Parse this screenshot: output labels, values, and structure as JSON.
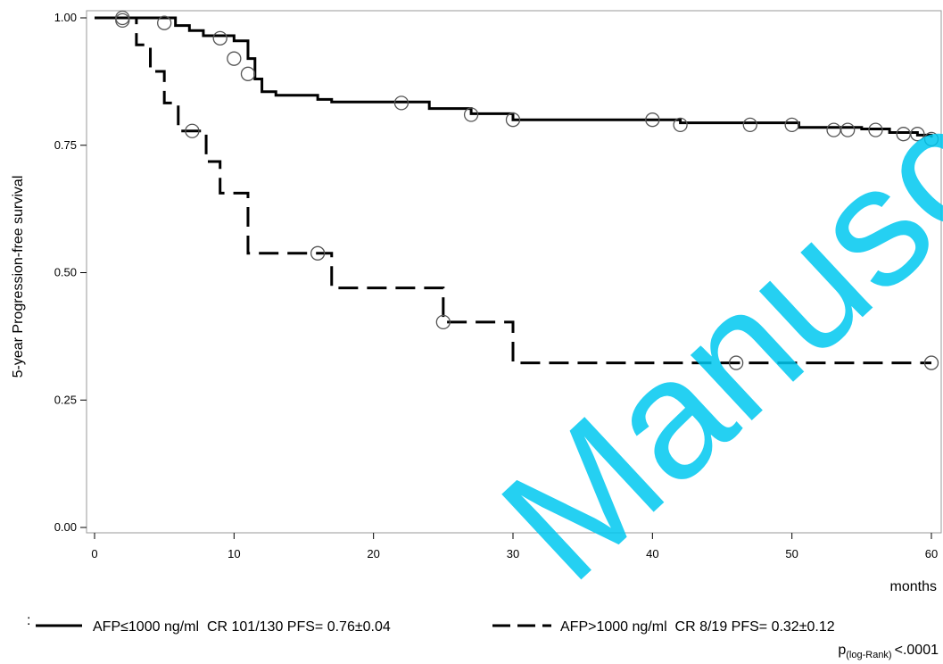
{
  "chart_data": {
    "type": "line",
    "subtype": "kaplan-meier step",
    "xlabel": "months",
    "ylabel": "5-year Progression-free survival",
    "xlim": [
      0,
      60
    ],
    "ylim": [
      0,
      1
    ],
    "xticks": [
      0,
      10,
      20,
      30,
      40,
      50,
      60
    ],
    "yticks": [
      "0.00",
      "0.25",
      "0.50",
      "0.75",
      "1.00"
    ],
    "grid": false,
    "legend_position": "bottom",
    "series": [
      {
        "name": "AFP≤1000 ng/ml  CR 101/130 PFS= 0.76±0.04",
        "line_style": "solid",
        "color": "#000000",
        "steps": [
          [
            0,
            1.0
          ],
          [
            5.8,
            0.985
          ],
          [
            6.8,
            0.975
          ],
          [
            7.8,
            0.965
          ],
          [
            10,
            0.955
          ],
          [
            11,
            0.92
          ],
          [
            11.5,
            0.88
          ],
          [
            12,
            0.855
          ],
          [
            13,
            0.848
          ],
          [
            16,
            0.84
          ],
          [
            17,
            0.835
          ],
          [
            24,
            0.822
          ],
          [
            27,
            0.812
          ],
          [
            30,
            0.8
          ],
          [
            42,
            0.794
          ],
          [
            50.5,
            0.785
          ],
          [
            55,
            0.782
          ],
          [
            57,
            0.775
          ],
          [
            59,
            0.77
          ],
          [
            60,
            0.765
          ]
        ],
        "censored": [
          [
            2,
            0.995
          ],
          [
            5,
            0.99
          ],
          [
            9,
            0.96
          ],
          [
            10,
            0.92
          ],
          [
            11,
            0.89
          ],
          [
            22,
            0.833
          ],
          [
            27,
            0.81
          ],
          [
            30,
            0.8
          ],
          [
            40,
            0.8
          ],
          [
            42,
            0.79
          ],
          [
            47,
            0.79
          ],
          [
            50,
            0.79
          ],
          [
            53,
            0.78
          ],
          [
            54,
            0.78
          ],
          [
            56,
            0.78
          ],
          [
            58,
            0.772
          ],
          [
            59,
            0.772
          ],
          [
            60,
            0.762
          ]
        ]
      },
      {
        "name": "AFP>1000 ng/ml  CR 8/19 PFS= 0.32±0.12",
        "line_style": "dashed",
        "color": "#000000",
        "steps": [
          [
            0,
            1.0
          ],
          [
            3,
            0.947
          ],
          [
            4,
            0.895
          ],
          [
            5,
            0.833
          ],
          [
            6,
            0.778
          ],
          [
            8,
            0.718
          ],
          [
            9,
            0.656
          ],
          [
            11,
            0.538
          ],
          [
            17,
            0.47
          ],
          [
            25,
            0.403
          ],
          [
            30,
            0.323
          ],
          [
            60,
            0.323
          ]
        ],
        "censored": [
          [
            2,
            1.0
          ],
          [
            7,
            0.778
          ],
          [
            16,
            0.538
          ],
          [
            25,
            0.403
          ],
          [
            46,
            0.323
          ],
          [
            60,
            0.323
          ]
        ]
      }
    ],
    "annotation": {
      "p_prefix": "p",
      "p_subscript": "(log-Rank)",
      "p_value": "<.0001"
    }
  },
  "legend_marker": ":",
  "watermark": "Manuscri"
}
